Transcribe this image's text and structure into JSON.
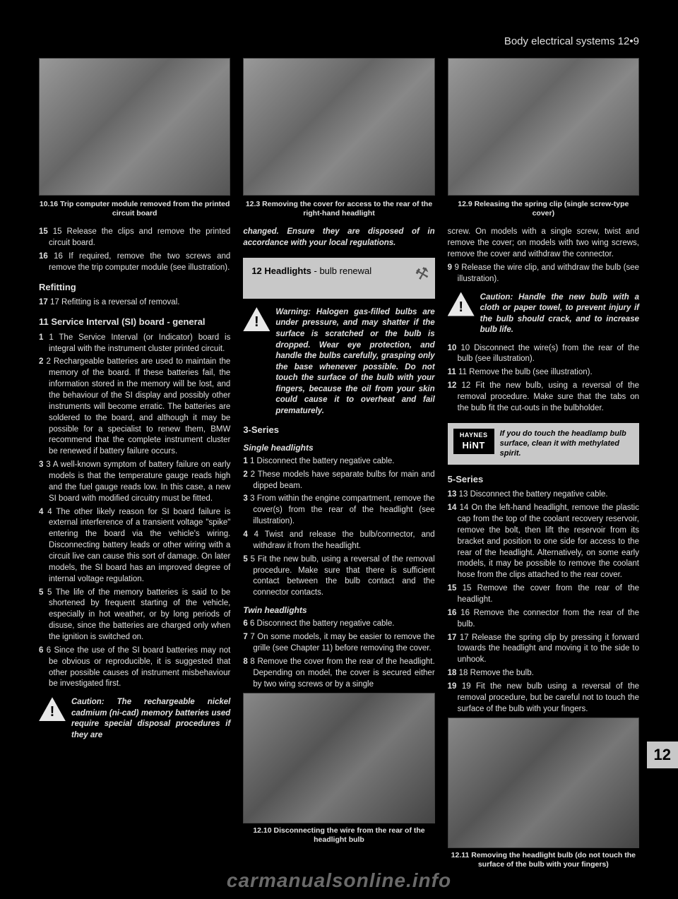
{
  "page_header": "Body electrical systems  12•9",
  "side_tab": "12",
  "watermark": "carmanualsonline.info",
  "col1": {
    "photo1_caption": "10.16  Trip computer module removed from the printed circuit board",
    "p1": "15 Release the clips and remove the printed circuit board.",
    "p2": "16 If required, remove the two screws and remove the trip computer module (see illustration).",
    "heading_refit": "Refitting",
    "p3": "17 Refitting is a reversal of removal.",
    "heading_11": "11  Service Interval (SI) board - general",
    "p4": "1 The Service Interval (or Indicator) board is integral with the instrument cluster printed circuit.",
    "p5": "2 Rechargeable batteries are used to maintain the memory of the board. If these batteries fail, the information stored in the memory will be lost, and the behaviour of the SI display and possibly other instruments will become erratic. The batteries are soldered to the board, and although it may be possible for a specialist to renew them, BMW recommend that the complete instrument cluster be renewed if battery failure occurs.",
    "p6": "3 A well-known symptom of battery failure on early models is that the temperature gauge reads high and the fuel gauge reads low. In this case, a new SI board with modified circuitry must be fitted.",
    "p7": "4 The other likely reason for SI board failure is external interference of a transient voltage \"spike\" entering the board via the vehicle's wiring. Disconnecting battery leads or other wiring with a circuit live can cause this sort of damage. On later models, the SI board has an improved degree of internal voltage regulation.",
    "p8": "5 The life of the memory batteries is said to be shortened by frequent starting of the vehicle, especially in hot weather, or by long periods of disuse, since the batteries are charged only when the ignition is switched on.",
    "p9": "6 Since the use of the SI board batteries may not be obvious or reproducible, it is suggested that other possible causes of instrument misbehaviour be investigated first.",
    "warn1": "Caution: The rechargeable nickel cadmium (ni-cad) memory batteries used require special disposal procedures if they are"
  },
  "col2": {
    "photo1_caption": "12.3  Removing the cover for access to the rear of the right-hand headlight",
    "warn_cont": "changed. Ensure they are disposed of in accordance with your local regulations.",
    "section12_num": "12",
    "section12_title": "Headlights",
    "section12_sub": " - bulb renewal",
    "warn2": "Warning: Halogen gas-filled bulbs are under pressure, and may shatter if the surface is scratched or the bulb is dropped. Wear eye protection, and handle the bulbs carefully, grasping only the base whenever possible. Do not touch the surface of the bulb with your fingers, because the oil from your skin could cause it to overheat and fail prematurely.",
    "heading_3series": "3-Series",
    "sub_single": "Single headlights",
    "p1": "1 Disconnect the battery negative cable.",
    "p2": "2 These models have separate bulbs for main and dipped beam.",
    "p3": "3 From within the engine compartment, remove the cover(s) from the rear of the headlight (see illustration).",
    "p4": "4 Twist and release the bulb/connector, and withdraw it from the headlight.",
    "p5": "5 Fit the new bulb, using a reversal of the removal procedure. Make sure that there is sufficient contact between the bulb contact and the connector contacts.",
    "sub_twin": "Twin headlights",
    "p6": "6 Disconnect the battery negative cable.",
    "p7": "7 On some models, it may be easier to remove the grille (see Chapter 11) before removing the cover.",
    "p8": "8 Remove the cover from the rear of the headlight. Depending on model, the cover is secured either by two wing screws or by a single",
    "photo2_caption": "12.10  Disconnecting the wire from the rear of the headlight bulb"
  },
  "col3": {
    "photo1_caption": "12.9  Releasing the spring clip (single screw-type cover)",
    "p1": "screw. On models with a single screw, twist and remove the cover; on models with two wing screws, remove the cover and withdraw the connector.",
    "p2": "9 Release the wire clip, and withdraw the bulb (see illustration).",
    "warn3": "Caution: Handle the new bulb with a cloth or paper towel, to prevent injury if the bulb should crack, and to increase bulb life.",
    "p3": "10 Disconnect the wire(s) from the rear of the bulb (see illustration).",
    "p4": "11 Remove the bulb (see illustration).",
    "p5": "12 Fit the new bulb, using a reversal of the removal procedure. Make sure that the tabs on the bulb fit the cut-outs in the bulbholder.",
    "hint_brand_top": "HAYNES",
    "hint_brand_bot": "HiNT",
    "hint_text": "If you do touch the headlamp bulb surface, clean it with methylated spirit.",
    "heading_5series": "5-Series",
    "p6": "13 Disconnect the battery negative cable.",
    "p7": "14 On the left-hand headlight, remove the plastic cap from the top of the coolant recovery reservoir, remove the bolt, then lift the reservoir from its bracket and position to one side for access to the rear of the headlight. Alternatively, on some early models, it may be possible to remove the coolant hose from the clips attached to the rear cover.",
    "p8": "15 Remove the cover from the rear of the headlight.",
    "p9": "16 Remove the connector from the rear of the bulb.",
    "p10": "17 Release the spring clip by pressing it forward towards the headlight and moving it to the side to unhook.",
    "p11": "18 Remove the bulb.",
    "p12": "19 Fit the new bulb using a reversal of the removal procedure, but be careful not to touch the surface of the bulb with your fingers.",
    "photo2_caption": "12.11  Removing the headlight bulb (do not touch the surface of the bulb with your fingers)"
  }
}
